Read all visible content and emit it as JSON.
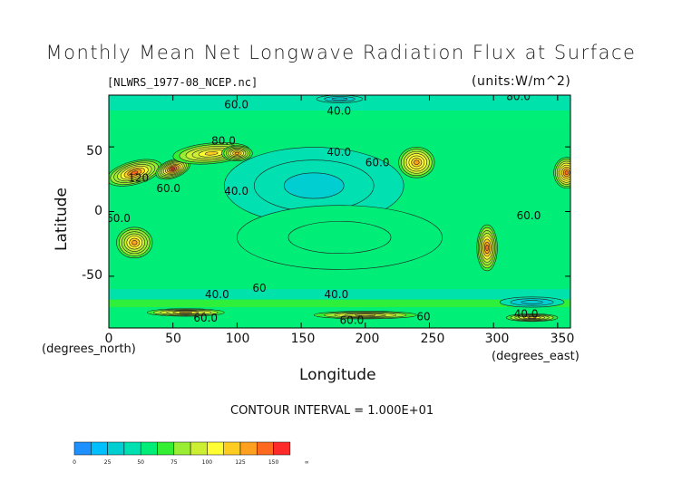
{
  "chart_data": {
    "type": "heatmap",
    "title": "Monthly Mean Net Longwave Radiation Flux at Surface",
    "subtitle": "[NLWRS_1977-08_NCEP.nc]",
    "units_label": "(units:W/m^2)",
    "xlabel": "Longitude",
    "xlabel_unit": "(degrees_east)",
    "ylabel": "Latitude",
    "ylabel_unit": "(degrees_north)",
    "xlim": [
      0,
      360
    ],
    "ylim": [
      -90,
      90
    ],
    "x_ticks": [
      "0",
      "50",
      "100",
      "150",
      "200",
      "250",
      "300",
      "350"
    ],
    "y_ticks": [
      "50",
      "0",
      "-50"
    ],
    "contour_interval_text": "CONTOUR INTERVAL = 1.000E+01",
    "colorbar": {
      "boundaries": [
        0,
        12.5,
        25,
        37.5,
        50,
        62.5,
        75,
        87.5,
        100,
        112.5,
        125,
        137.5,
        150,
        162.5
      ],
      "colors": [
        "#1e90ff",
        "#00bfff",
        "#00ced1",
        "#00e0b0",
        "#00ee77",
        "#33ee33",
        "#99ee33",
        "#ccee33",
        "#ffff33",
        "#ffcc22",
        "#ffa020",
        "#ff6a20",
        "#ff2a2a"
      ],
      "tick_labels": [
        "0",
        "25",
        "50",
        "75",
        "100",
        "125",
        "150",
        "∞"
      ]
    },
    "contour_labels": [
      {
        "text": "60.0",
        "lon": 90,
        "lat": 80
      },
      {
        "text": "40.0",
        "lon": 170,
        "lat": 75
      },
      {
        "text": "80.0",
        "lon": 310,
        "lat": 86
      },
      {
        "text": "80.0",
        "lon": 80,
        "lat": 52
      },
      {
        "text": "40.0",
        "lon": 170,
        "lat": 43
      },
      {
        "text": "60.0",
        "lon": 200,
        "lat": 35
      },
      {
        "text": "120",
        "lon": 15,
        "lat": 23
      },
      {
        "text": "60.0",
        "lon": 37,
        "lat": 15
      },
      {
        "text": "40.0",
        "lon": 90,
        "lat": 13
      },
      {
        "text": "60.0",
        "lon": -2,
        "lat": -8
      },
      {
        "text": "60.0",
        "lon": 318,
        "lat": -6
      },
      {
        "text": "60",
        "lon": 112,
        "lat": -62
      },
      {
        "text": "40.0",
        "lon": 75,
        "lat": -67
      },
      {
        "text": "40.0",
        "lon": 168,
        "lat": -67
      },
      {
        "text": "60.0",
        "lon": 66,
        "lat": -85
      },
      {
        "text": "60.0",
        "lon": 180,
        "lat": -87
      },
      {
        "text": "60",
        "lon": 240,
        "lat": -84
      },
      {
        "text": "40.0",
        "lon": 316,
        "lat": -82
      }
    ],
    "features": [
      {
        "lon": 20,
        "lat": 30,
        "value": 140,
        "sx": 22,
        "sy": 9,
        "rot": -15
      },
      {
        "lon": 50,
        "lat": 33,
        "value": 150,
        "sx": 14,
        "sy": 7,
        "rot": -20
      },
      {
        "lon": 80,
        "lat": 45,
        "value": 120,
        "sx": 30,
        "sy": 8,
        "rot": -5
      },
      {
        "lon": 100,
        "lat": 45,
        "value": 130,
        "sx": 12,
        "sy": 6,
        "rot": 0
      },
      {
        "lon": 240,
        "lat": 38,
        "value": 135,
        "sx": 14,
        "sy": 12,
        "rot": 0
      },
      {
        "lon": 357,
        "lat": 30,
        "value": 145,
        "sx": 10,
        "sy": 12,
        "rot": 0
      },
      {
        "lon": 20,
        "lat": -24,
        "value": 130,
        "sx": 14,
        "sy": 12,
        "rot": 0
      },
      {
        "lon": 135,
        "lat": -24,
        "value": 125,
        "sx": 18,
        "sy": 9,
        "rot": -5
      },
      {
        "lon": 295,
        "lat": -28,
        "value": 140,
        "sx": 8,
        "sy": 18,
        "rot": 0
      },
      {
        "lon": 180,
        "lat": -30,
        "value": 95,
        "sx": 10,
        "sy": 5,
        "rot": 0
      },
      {
        "lon": 160,
        "lat": 20,
        "value": 35,
        "sx": 70,
        "sy": 30,
        "rot": 0
      },
      {
        "lon": 180,
        "lat": -20,
        "value": 50,
        "sx": 80,
        "sy": 25,
        "rot": 0
      },
      {
        "lon": 180,
        "lat": 87,
        "value": 25,
        "sx": 18,
        "sy": 3,
        "rot": 0
      },
      {
        "lon": 330,
        "lat": -70,
        "value": 25,
        "sx": 25,
        "sy": 4,
        "rot": 0
      },
      {
        "lon": 60,
        "lat": -78,
        "value": 120,
        "sx": 30,
        "sy": 3,
        "rot": 0
      },
      {
        "lon": 200,
        "lat": -80,
        "value": 110,
        "sx": 40,
        "sy": 3,
        "rot": 0
      },
      {
        "lon": 330,
        "lat": -82,
        "value": 115,
        "sx": 20,
        "sy": 3,
        "rot": 0
      }
    ]
  }
}
